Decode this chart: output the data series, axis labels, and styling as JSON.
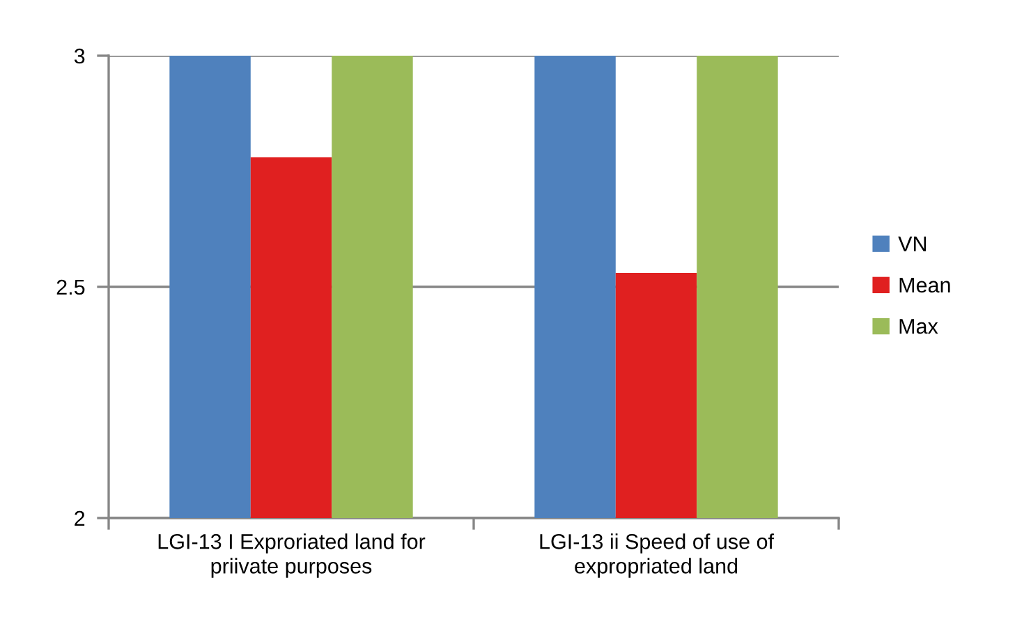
{
  "chart_data": {
    "type": "bar",
    "categories": [
      "LGI-13 I Exproriated land for priivate purposes",
      "LGI-13 ii Speed of use of expropriated land"
    ],
    "series": [
      {
        "name": "VN",
        "color": "#4f81bd",
        "values": [
          3,
          3
        ]
      },
      {
        "name": "Mean",
        "color": "#e02020",
        "values": [
          2.78,
          2.53
        ]
      },
      {
        "name": "Max",
        "color": "#9bbb59",
        "values": [
          3,
          3
        ]
      }
    ],
    "ylim": [
      2,
      3
    ],
    "yticks": [
      2,
      {
        "value": 2.5,
        "label": "2.5"
      },
      3
    ],
    "grid": "y",
    "legend": "right"
  }
}
